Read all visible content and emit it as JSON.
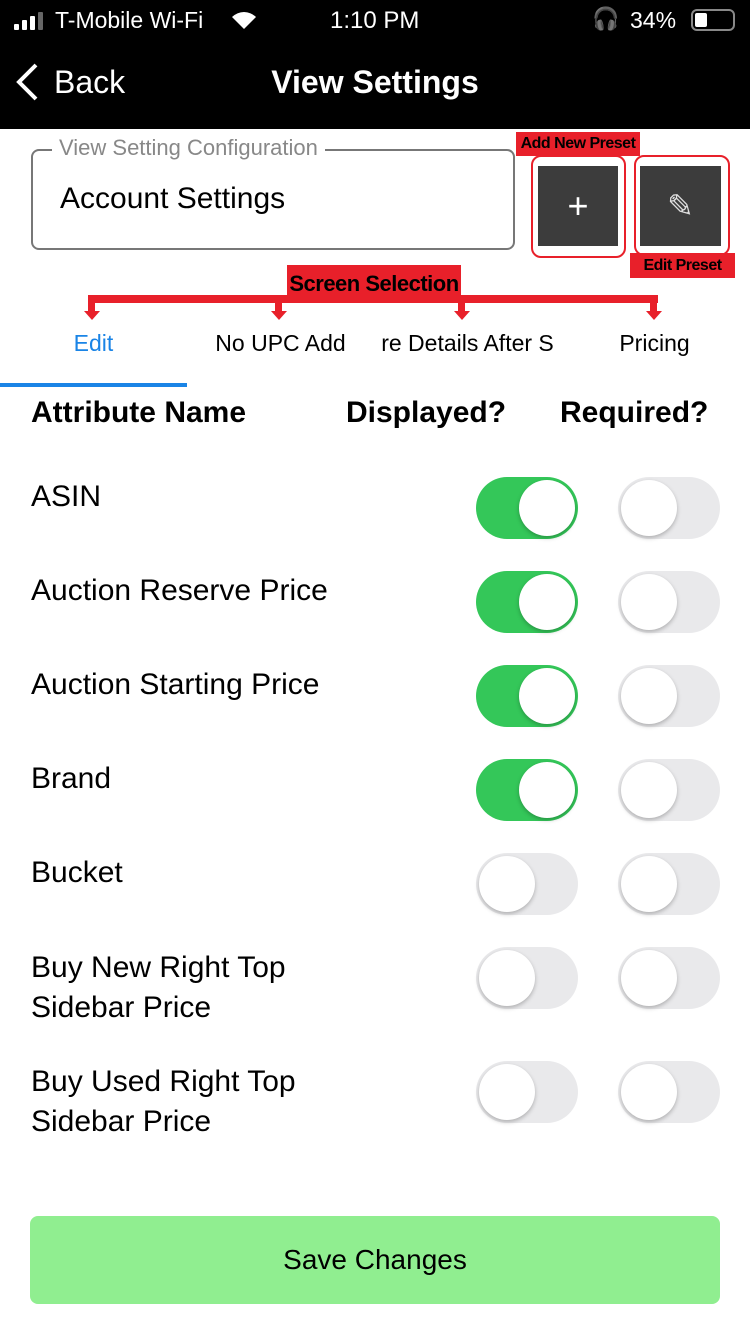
{
  "status_bar": {
    "carrier": "T-Mobile Wi-Fi",
    "time": "1:10 PM",
    "battery": "34%"
  },
  "nav": {
    "back_label": "Back",
    "title": "View Settings"
  },
  "config": {
    "legend": "View Setting Configuration",
    "value": "Account Settings"
  },
  "buttons": {
    "add_icon": "+",
    "edit_icon": "✎"
  },
  "annotations": {
    "add_new_preset": "Add New Preset",
    "edit_preset": "Edit Preset",
    "screen_selection": "Screen Selection",
    "color": "#e8202a"
  },
  "tabs": [
    {
      "label": "Edit",
      "active": true
    },
    {
      "label": "No UPC Add"
    },
    {
      "label": "re Details After S"
    },
    {
      "label": "Pricing"
    }
  ],
  "table": {
    "headers": {
      "name": "Attribute Name",
      "displayed": "Displayed?",
      "required": "Required?"
    },
    "rows": [
      {
        "name": "ASIN",
        "displayed": true,
        "required": false
      },
      {
        "name": "Auction Reserve Price",
        "displayed": true,
        "required": false
      },
      {
        "name": "Auction Starting Price",
        "displayed": true,
        "required": false
      },
      {
        "name": "Brand",
        "displayed": true,
        "required": false
      },
      {
        "name": "Bucket",
        "displayed": false,
        "required": false
      },
      {
        "name": "Buy New Right Top Sidebar Price",
        "line1": "Buy New Right Top",
        "line2": "Sidebar Price",
        "displayed": false,
        "required": false
      },
      {
        "name": "Buy Used Right Top Sidebar Price",
        "line1": "Buy Used Right Top",
        "line2": "Sidebar Price",
        "displayed": false,
        "required": false
      }
    ]
  },
  "save_label": "Save Changes",
  "colors": {
    "accent": "#1a84e6",
    "toggle_on": "#34c759",
    "save": "#90ee90"
  }
}
